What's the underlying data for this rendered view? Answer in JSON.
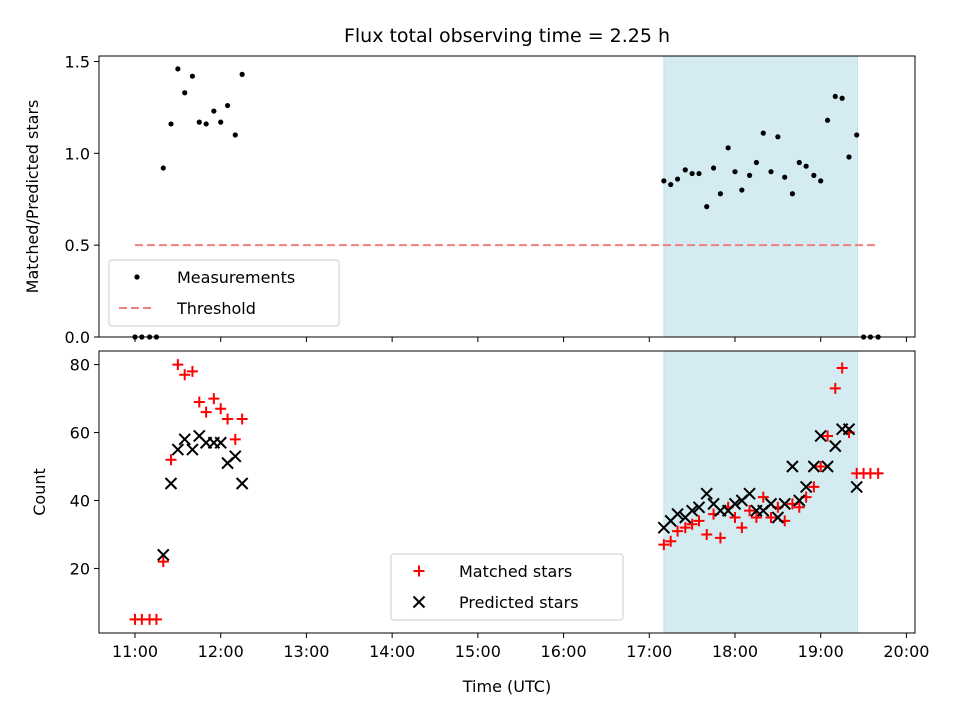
{
  "chart_data": [
    {
      "type": "scatter",
      "title": "Flux total observing time = 2.25 h",
      "xlabel": "",
      "ylabel": "Matched/Predicted stars",
      "xlim": [
        10.58,
        20.1
      ],
      "ylim": [
        0,
        1.53
      ],
      "yticks": [
        0.0,
        0.5,
        1.0,
        1.5
      ],
      "ytick_labels": [
        "0.0",
        "0.5",
        "1.0",
        "1.5"
      ],
      "xticks": [
        11,
        12,
        13,
        14,
        15,
        16,
        17,
        18,
        19,
        20
      ],
      "shaded_region": {
        "x_start": 17.17,
        "x_end": 19.43,
        "color": "#d3ebf1"
      },
      "legend_position": "lower-left",
      "series": [
        {
          "name": "Measurements",
          "marker": "dot",
          "color": "#000000",
          "points": [
            [
              11.0,
              0
            ],
            [
              11.08,
              0
            ],
            [
              11.17,
              0
            ],
            [
              11.25,
              0
            ],
            [
              11.33,
              0.92
            ],
            [
              11.42,
              1.16
            ],
            [
              11.5,
              1.46
            ],
            [
              11.58,
              1.33
            ],
            [
              11.67,
              1.42
            ],
            [
              11.75,
              1.17
            ],
            [
              11.83,
              1.16
            ],
            [
              11.92,
              1.23
            ],
            [
              12.0,
              1.17
            ],
            [
              12.08,
              1.26
            ],
            [
              12.17,
              1.1
            ],
            [
              12.25,
              1.43
            ],
            [
              17.17,
              0.85
            ],
            [
              17.25,
              0.83
            ],
            [
              17.33,
              0.86
            ],
            [
              17.42,
              0.91
            ],
            [
              17.5,
              0.89
            ],
            [
              17.58,
              0.89
            ],
            [
              17.67,
              0.71
            ],
            [
              17.75,
              0.92
            ],
            [
              17.83,
              0.78
            ],
            [
              17.92,
              1.03
            ],
            [
              18.0,
              0.9
            ],
            [
              18.08,
              0.8
            ],
            [
              18.17,
              0.88
            ],
            [
              18.25,
              0.95
            ],
            [
              18.33,
              1.11
            ],
            [
              18.42,
              0.9
            ],
            [
              18.5,
              1.09
            ],
            [
              18.58,
              0.87
            ],
            [
              18.67,
              0.78
            ],
            [
              18.75,
              0.95
            ],
            [
              18.83,
              0.93
            ],
            [
              18.92,
              0.88
            ],
            [
              19.0,
              0.85
            ],
            [
              19.08,
              1.18
            ],
            [
              19.17,
              1.31
            ],
            [
              19.25,
              1.3
            ],
            [
              19.33,
              0.98
            ],
            [
              19.42,
              1.1
            ],
            [
              19.5,
              0
            ],
            [
              19.58,
              0
            ],
            [
              19.67,
              0
            ]
          ]
        },
        {
          "name": "Threshold",
          "style": "dashed",
          "color": "#f08080",
          "points": [
            [
              11.0,
              0.5
            ],
            [
              19.67,
              0.5
            ]
          ]
        }
      ]
    },
    {
      "type": "scatter",
      "xlabel": "Time (UTC)",
      "ylabel": "Count",
      "xlim": [
        10.58,
        20.1
      ],
      "ylim": [
        1,
        84
      ],
      "yticks": [
        20,
        40,
        60,
        80
      ],
      "xticks": [
        11,
        12,
        13,
        14,
        15,
        16,
        17,
        18,
        19,
        20
      ],
      "xtick_labels": [
        "11:00",
        "12:00",
        "13:00",
        "14:00",
        "15:00",
        "16:00",
        "17:00",
        "18:00",
        "19:00",
        "20:00"
      ],
      "shaded_region": {
        "x_start": 17.17,
        "x_end": 19.43,
        "color": "#d3ebf1"
      },
      "legend_position": "lower-center",
      "series": [
        {
          "name": "Matched stars",
          "marker": "plus",
          "color": "#ff0000",
          "points": [
            [
              11.0,
              5
            ],
            [
              11.08,
              5
            ],
            [
              11.17,
              5
            ],
            [
              11.25,
              5
            ],
            [
              11.33,
              22
            ],
            [
              11.42,
              52
            ],
            [
              11.5,
              80
            ],
            [
              11.58,
              77
            ],
            [
              11.67,
              78
            ],
            [
              11.75,
              69
            ],
            [
              11.83,
              66
            ],
            [
              11.92,
              70
            ],
            [
              12.0,
              67
            ],
            [
              12.08,
              64
            ],
            [
              12.17,
              58
            ],
            [
              12.25,
              64
            ],
            [
              17.17,
              27
            ],
            [
              17.25,
              28
            ],
            [
              17.33,
              31
            ],
            [
              17.42,
              32
            ],
            [
              17.5,
              33
            ],
            [
              17.58,
              34
            ],
            [
              17.67,
              30
            ],
            [
              17.75,
              36
            ],
            [
              17.83,
              29
            ],
            [
              17.92,
              38
            ],
            [
              18.0,
              35
            ],
            [
              18.08,
              32
            ],
            [
              18.17,
              37
            ],
            [
              18.25,
              35
            ],
            [
              18.33,
              41
            ],
            [
              18.42,
              35
            ],
            [
              18.5,
              38
            ],
            [
              18.58,
              34
            ],
            [
              18.67,
              39
            ],
            [
              18.75,
              38
            ],
            [
              18.83,
              41
            ],
            [
              18.92,
              44
            ],
            [
              19.0,
              50
            ],
            [
              19.08,
              59
            ],
            [
              19.17,
              73
            ],
            [
              19.25,
              79
            ],
            [
              19.33,
              60
            ],
            [
              19.42,
              48
            ],
            [
              19.5,
              48
            ],
            [
              19.58,
              48
            ],
            [
              19.67,
              48
            ]
          ]
        },
        {
          "name": "Predicted stars",
          "marker": "x",
          "color": "#000000",
          "points": [
            [
              11.33,
              24
            ],
            [
              11.42,
              45
            ],
            [
              11.5,
              55
            ],
            [
              11.58,
              58
            ],
            [
              11.67,
              55
            ],
            [
              11.75,
              59
            ],
            [
              11.83,
              57
            ],
            [
              11.92,
              57
            ],
            [
              12.0,
              57
            ],
            [
              12.08,
              51
            ],
            [
              12.17,
              53
            ],
            [
              12.25,
              45
            ],
            [
              17.17,
              32
            ],
            [
              17.25,
              34
            ],
            [
              17.33,
              36
            ],
            [
              17.42,
              35
            ],
            [
              17.5,
              37
            ],
            [
              17.58,
              38
            ],
            [
              17.67,
              42
            ],
            [
              17.75,
              39
            ],
            [
              17.83,
              37
            ],
            [
              17.92,
              37
            ],
            [
              18.0,
              39
            ],
            [
              18.08,
              40
            ],
            [
              18.17,
              42
            ],
            [
              18.25,
              37
            ],
            [
              18.33,
              37
            ],
            [
              18.42,
              39
            ],
            [
              18.5,
              35
            ],
            [
              18.58,
              39
            ],
            [
              18.67,
              50
            ],
            [
              18.75,
              40
            ],
            [
              18.83,
              44
            ],
            [
              18.92,
              50
            ],
            [
              19.0,
              59
            ],
            [
              19.08,
              50
            ],
            [
              19.17,
              56
            ],
            [
              19.25,
              61
            ],
            [
              19.33,
              61
            ],
            [
              19.42,
              44
            ]
          ]
        }
      ]
    }
  ]
}
